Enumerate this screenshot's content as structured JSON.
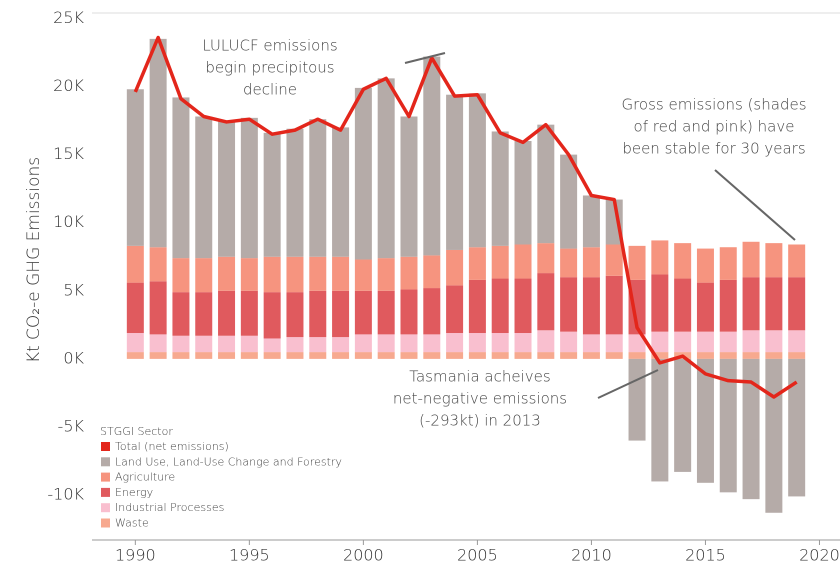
{
  "chart_data": {
    "type": "bar",
    "stacked": true,
    "y_label": "Kt CO₂-e GHG Emissions",
    "legend_title": "STGGI Sector",
    "legend": "lower left",
    "x": [
      1990,
      1991,
      1992,
      1993,
      1994,
      1995,
      1996,
      1997,
      1998,
      1999,
      2000,
      2001,
      2002,
      2003,
      2004,
      2005,
      2006,
      2007,
      2008,
      2009,
      2010,
      2011,
      2012,
      2013,
      2014,
      2015,
      2016,
      2017,
      2018,
      2019
    ],
    "series": [
      {
        "name": "Total (net emissions)",
        "type": "line",
        "color": "#e3261b",
        "values": [
          19.6,
          23.6,
          19.1,
          17.8,
          17.4,
          17.6,
          16.5,
          16.8,
          17.6,
          16.8,
          19.8,
          20.6,
          17.8,
          22.1,
          19.3,
          19.4,
          16.6,
          15.9,
          17.2,
          15.0,
          12.0,
          11.7,
          2.3,
          -0.293,
          0.2,
          -1.1,
          -1.6,
          -1.7,
          -2.8,
          -1.7
        ]
      },
      {
        "name": "Land Use, Land-Use Change and Forestry",
        "color": "#b5aba8",
        "values": [
          11.5,
          15.3,
          11.8,
          10.4,
          10.0,
          10.3,
          9.1,
          9.4,
          10.1,
          9.5,
          12.6,
          13.2,
          10.3,
          14.6,
          11.4,
          11.3,
          8.4,
          7.6,
          8.7,
          6.9,
          3.8,
          3.3,
          -6.0,
          -9.0,
          -8.3,
          -9.1,
          -9.8,
          -10.3,
          -11.3,
          -10.1
        ]
      },
      {
        "name": "Agriculture",
        "color": "#f6947f",
        "values": [
          2.7,
          2.5,
          2.5,
          2.5,
          2.5,
          2.4,
          2.6,
          2.6,
          2.5,
          2.5,
          2.3,
          2.4,
          2.4,
          2.4,
          2.6,
          2.4,
          2.4,
          2.5,
          2.2,
          2.1,
          2.2,
          2.3,
          2.5,
          2.5,
          2.6,
          2.5,
          2.4,
          2.6,
          2.5,
          2.4
        ]
      },
      {
        "name": "Energy",
        "color": "#e05a5e",
        "values": [
          3.7,
          3.9,
          3.2,
          3.2,
          3.3,
          3.3,
          3.4,
          3.3,
          3.4,
          3.4,
          3.2,
          3.2,
          3.3,
          3.4,
          3.5,
          3.9,
          4.0,
          4.0,
          4.2,
          4.0,
          4.2,
          4.3,
          4.0,
          4.2,
          3.9,
          3.6,
          3.8,
          3.9,
          3.9,
          3.9
        ]
      },
      {
        "name": "Industrial Processes",
        "color": "#f9bfcf",
        "values": [
          1.4,
          1.3,
          1.2,
          1.2,
          1.2,
          1.2,
          1.0,
          1.1,
          1.1,
          1.1,
          1.3,
          1.3,
          1.3,
          1.3,
          1.4,
          1.4,
          1.4,
          1.4,
          1.6,
          1.5,
          1.3,
          1.3,
          1.3,
          1.5,
          1.5,
          1.5,
          1.5,
          1.6,
          1.6,
          1.6
        ]
      },
      {
        "name": "Waste",
        "color": "#f7a98f",
        "values": [
          0.5,
          0.5,
          0.5,
          0.5,
          0.5,
          0.5,
          0.5,
          0.5,
          0.5,
          0.5,
          0.5,
          0.5,
          0.5,
          0.5,
          0.5,
          0.5,
          0.5,
          0.5,
          0.5,
          0.5,
          0.5,
          0.5,
          0.5,
          0.5,
          0.5,
          0.5,
          0.5,
          0.5,
          0.5,
          0.5
        ]
      }
    ],
    "xlim": [
      1988.1,
      2020.9
    ],
    "xticks": [
      1990,
      1995,
      2000,
      2005,
      2010,
      2015,
      2020
    ],
    "ylim": [
      -13.3,
      25.4
    ],
    "yticks": [
      {
        "value": -10,
        "label": "-10K"
      },
      {
        "value": -5,
        "label": "-5K"
      },
      {
        "value": 0,
        "label": "0K"
      },
      {
        "value": 5,
        "label": "5K"
      },
      {
        "value": 10,
        "label": "10K"
      },
      {
        "value": 15,
        "label": "15K"
      },
      {
        "value": 20,
        "label": "20K"
      },
      {
        "value": 25,
        "label": "25K"
      }
    ],
    "annotations": [
      [
        "LULUCF emissions",
        "begin precipitous",
        "decline"
      ],
      [
        "Gross emissions (shades",
        "of red and pink) have",
        "been stable for 30 years"
      ],
      [
        "Tasmania acheives",
        "net-negative emissions",
        "(-293kt) in 2013"
      ]
    ]
  }
}
